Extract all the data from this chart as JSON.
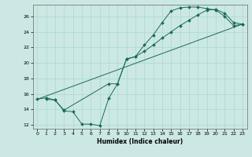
{
  "xlabel": "Humidex (Indice chaleur)",
  "bg_color": "#cce8e4",
  "line_color": "#1a6b5a",
  "grid_color": "#aad8d0",
  "xlim": [
    -0.5,
    23.5
  ],
  "ylim": [
    11.5,
    27.5
  ],
  "xticks": [
    0,
    1,
    2,
    3,
    4,
    5,
    6,
    7,
    8,
    9,
    10,
    11,
    12,
    13,
    14,
    15,
    16,
    17,
    18,
    19,
    20,
    21,
    22,
    23
  ],
  "yticks": [
    12,
    14,
    16,
    18,
    20,
    22,
    24,
    26
  ],
  "curve1_x": [
    1,
    2,
    3,
    4,
    5,
    6,
    7,
    8,
    9,
    10,
    11,
    12,
    13,
    14,
    15,
    16,
    17,
    18,
    19,
    20,
    21,
    22,
    23
  ],
  "curve1_y": [
    15.3,
    15.2,
    13.8,
    13.7,
    12.1,
    12.1,
    11.9,
    15.4,
    17.3,
    20.5,
    20.8,
    22.3,
    23.6,
    25.2,
    26.7,
    27.1,
    27.2,
    27.2,
    27.0,
    26.8,
    26.0,
    24.8,
    25.0
  ],
  "curve2_x": [
    0,
    1,
    2,
    3,
    8,
    9,
    10,
    11,
    12,
    13,
    14,
    15,
    16,
    17,
    18,
    19,
    20,
    21,
    22,
    23
  ],
  "curve2_y": [
    15.3,
    15.5,
    15.2,
    13.9,
    17.3,
    17.3,
    20.5,
    20.8,
    21.5,
    22.3,
    23.2,
    24.0,
    24.8,
    25.5,
    26.2,
    26.8,
    26.9,
    26.4,
    25.2,
    25.0
  ],
  "line3_x": [
    0,
    23
  ],
  "line3_y": [
    15.3,
    25.0
  ]
}
